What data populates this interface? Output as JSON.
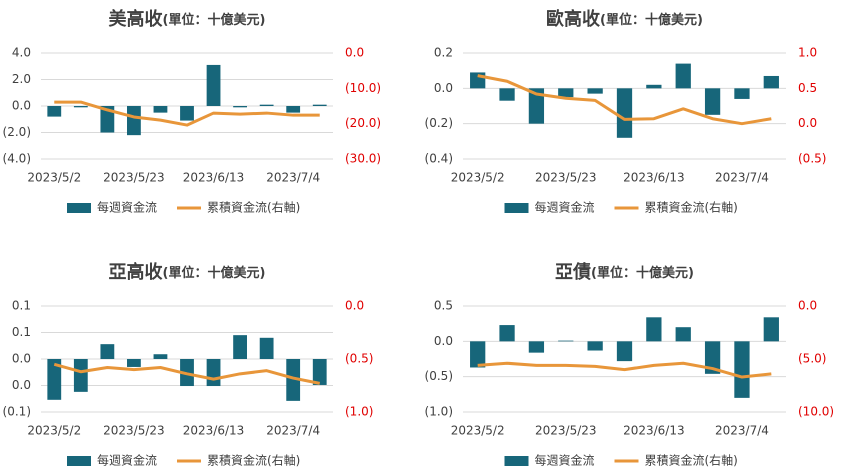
{
  "chart_data": [
    {
      "type": "bar",
      "title": "美高收",
      "subtitle": "(單位：十億美元)",
      "categories": [
        "2023/5/2",
        null,
        null,
        "2023/5/23",
        null,
        null,
        "2023/6/13",
        null,
        null,
        "2023/7/4",
        null
      ],
      "series": [
        {
          "name": "每週資金流",
          "type": "bar",
          "color": "#17667a",
          "values": [
            -0.8,
            -0.1,
            -2.0,
            -2.2,
            -0.5,
            -1.1,
            3.1,
            -0.1,
            0.1,
            -0.5,
            0.1
          ]
        },
        {
          "name": "累積資金流(右軸)",
          "type": "line",
          "axis": "y2",
          "color": "#e8963a",
          "values": [
            -13.9,
            -13.9,
            -16.1,
            -18.1,
            -19.0,
            -20.4,
            -17.0,
            -17.3,
            -17.0,
            -17.6,
            -17.6
          ]
        }
      ],
      "ylim": [
        -4,
        4
      ],
      "yticks": [
        {
          "value": 4,
          "label": "4.0"
        },
        {
          "value": 2,
          "label": "2.0"
        },
        {
          "value": 0,
          "label": "0.0"
        },
        {
          "value": -2,
          "label": "(2.0)"
        },
        {
          "value": -4,
          "label": "(4.0)"
        }
      ],
      "y2lim": [
        -30,
        0
      ],
      "y2ticks": [
        {
          "value": 0,
          "label": "0.0"
        },
        {
          "value": -10,
          "label": "(10.0)"
        },
        {
          "value": -20,
          "label": "(20.0)"
        },
        {
          "value": -30,
          "label": "(30.0)"
        }
      ],
      "y2tick_color": "#e00000",
      "grid": true,
      "legend": "bottom"
    },
    {
      "type": "bar",
      "title": "歐高收",
      "subtitle": "(單位：十億美元)",
      "categories": [
        "2023/5/2",
        null,
        null,
        "2023/5/23",
        null,
        null,
        "2023/6/13",
        null,
        null,
        "2023/7/4",
        null
      ],
      "series": [
        {
          "name": "每週資金流",
          "type": "bar",
          "color": "#17667a",
          "values": [
            0.09,
            -0.07,
            -0.2,
            -0.05,
            -0.03,
            -0.28,
            0.02,
            0.14,
            -0.15,
            -0.06,
            0.07
          ]
        },
        {
          "name": "累積資金流(右軸)",
          "type": "line",
          "axis": "y2",
          "color": "#e8963a",
          "values": [
            0.68,
            0.6,
            0.42,
            0.36,
            0.33,
            0.06,
            0.07,
            0.21,
            0.07,
            0.0,
            0.07
          ]
        }
      ],
      "ylim": [
        -0.4,
        0.2
      ],
      "yticks": [
        0.2,
        {
          "value": 0,
          "label": "0.0"
        },
        {
          "value": -0.2,
          "label": "(0.2)"
        },
        {
          "value": -0.4,
          "label": "(0.4)"
        }
      ],
      "y2lim": [
        -0.5,
        1
      ],
      "y2ticks": [
        {
          "value": 1,
          "label": "1.0"
        },
        0.5,
        {
          "value": 0,
          "label": "0.0"
        },
        {
          "value": -0.5,
          "label": "(0.5)"
        }
      ],
      "y2tick_color": "#e00000",
      "grid": true,
      "legend": "bottom"
    },
    {
      "type": "bar",
      "title": "亞高收",
      "subtitle": "(單位：十億美元)",
      "categories": [
        "2023/5/2",
        null,
        null,
        "2023/5/23",
        null,
        null,
        "2023/6/13",
        null,
        null,
        "2023/7/4",
        null
      ],
      "series": [
        {
          "name": "每週資金流",
          "type": "bar",
          "color": "#17667a",
          "values": [
            -0.077,
            -0.062,
            0.028,
            -0.015,
            0.009,
            -0.051,
            -0.051,
            0.045,
            0.04,
            -0.079,
            -0.049
          ]
        },
        {
          "name": "累積資金流(右軸)",
          "type": "line",
          "axis": "y2",
          "color": "#e8963a",
          "values": [
            -0.55,
            -0.62,
            -0.58,
            -0.6,
            -0.58,
            -0.64,
            -0.69,
            -0.64,
            -0.61,
            -0.68,
            -0.73
          ]
        }
      ],
      "ylim": [
        -0.1,
        0.1
      ],
      "yticks": [
        0.1,
        {
          "value": 0.05,
          "label": "0.1"
        },
        {
          "value": 0,
          "label": "0.0"
        },
        {
          "value": -0.05,
          "label": "0.0"
        },
        {
          "value": -0.1,
          "label": "(0.1)"
        }
      ],
      "y2lim": [
        -1,
        0
      ],
      "y2ticks": [
        {
          "value": 0,
          "label": "0.0"
        },
        {
          "value": -0.5,
          "label": "(0.5)"
        },
        {
          "value": -1,
          "label": "(1.0)"
        }
      ],
      "y2tick_color": "#e00000",
      "grid": true,
      "legend": "bottom"
    },
    {
      "type": "bar",
      "title": "亞債",
      "subtitle": "(單位：十億美元)",
      "categories": [
        "2023/5/2",
        null,
        null,
        "2023/5/23",
        null,
        null,
        "2023/6/13",
        null,
        null,
        "2023/7/4",
        null
      ],
      "series": [
        {
          "name": "每週資金流",
          "type": "bar",
          "color": "#17667a",
          "values": [
            -0.37,
            0.23,
            -0.16,
            0.01,
            -0.13,
            -0.28,
            0.34,
            0.2,
            -0.46,
            -0.8,
            0.34
          ]
        },
        {
          "name": "累積資金流(右軸)",
          "type": "line",
          "axis": "y2",
          "color": "#e8963a",
          "values": [
            -5.6,
            -5.4,
            -5.6,
            -5.6,
            -5.7,
            -6.0,
            -5.6,
            -5.4,
            -5.9,
            -6.7,
            -6.4
          ]
        }
      ],
      "ylim": [
        -1,
        0.5
      ],
      "yticks": [
        0.5,
        {
          "value": 0,
          "label": "0.0"
        },
        {
          "value": -0.5,
          "label": "(0.5)"
        },
        {
          "value": -1,
          "label": "(1.0)"
        }
      ],
      "y2lim": [
        -10,
        0
      ],
      "y2ticks": [
        {
          "value": 0,
          "label": "0.0"
        },
        {
          "value": -5,
          "label": "(5.0)"
        },
        {
          "value": -10,
          "label": "(10.0)"
        }
      ],
      "y2tick_color": "#e00000",
      "grid": true,
      "legend": "bottom"
    }
  ]
}
